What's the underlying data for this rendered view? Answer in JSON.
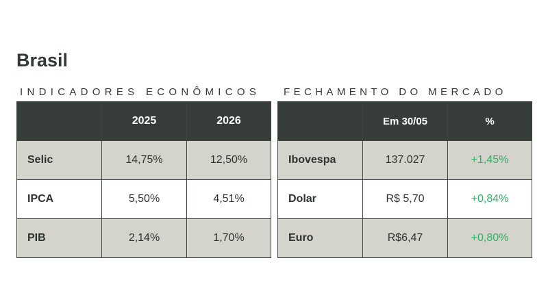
{
  "page_title": "Brasil",
  "indicators": {
    "section_title": "INDICADORES ECONÔMICOS",
    "headers": [
      "",
      "2025",
      "2026"
    ],
    "rows": [
      {
        "label": "Selic",
        "values": [
          "14,75%",
          "12,50%"
        ]
      },
      {
        "label": "IPCA",
        "values": [
          "5,50%",
          "4,51%"
        ]
      },
      {
        "label": "PIB",
        "values": [
          "2,14%",
          "1,70%"
        ]
      }
    ]
  },
  "market": {
    "section_title": "FECHAMENTO DO MERCADO",
    "headers": [
      "",
      "Em 30/05",
      "%"
    ],
    "rows": [
      {
        "label": "Ibovespa",
        "value": "137.027",
        "change": "+1,45%"
      },
      {
        "label": "Dolar",
        "value": "R$ 5,70",
        "change": "+0,84%"
      },
      {
        "label": "Euro",
        "value": "R$6,47",
        "change": "+0,80%"
      }
    ]
  },
  "colors": {
    "header_bg": "#363d39",
    "shaded_row_bg": "#d4d3cc",
    "positive_change": "#2fb364",
    "text": "#2d3430"
  }
}
